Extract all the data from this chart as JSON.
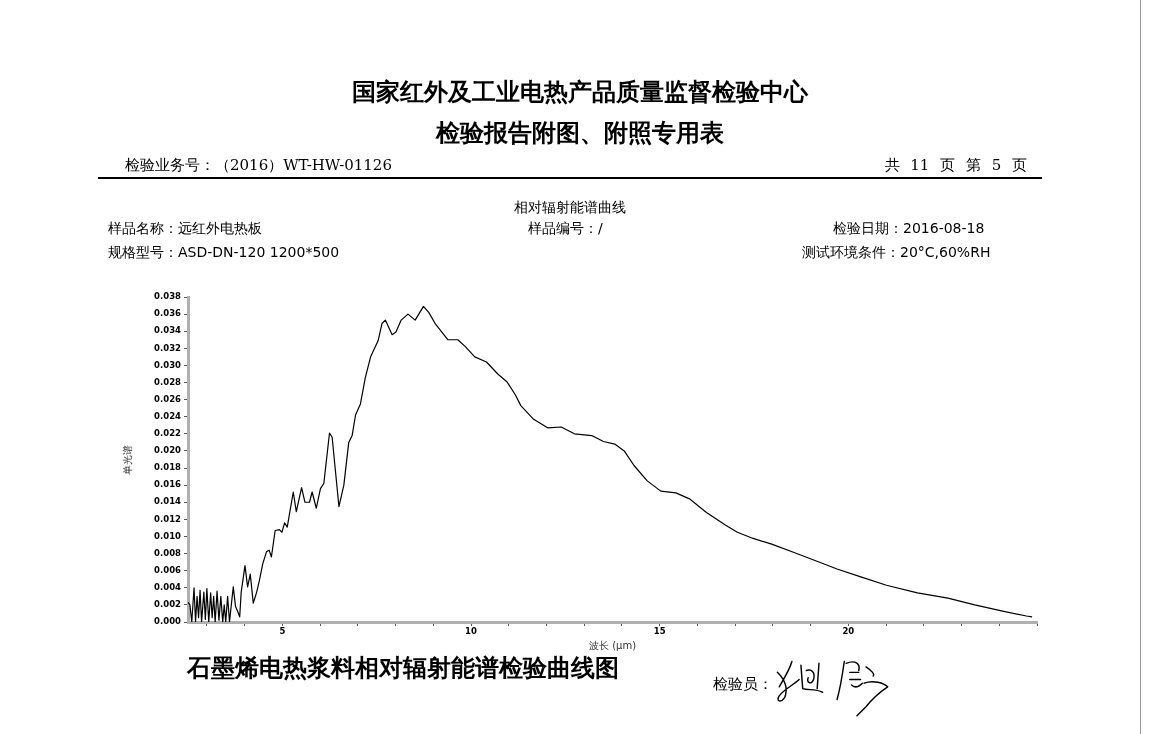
{
  "chart_data": {
    "type": "line",
    "title": "国家红外及工业电热产品质量监督检验中心",
    "subtitle": "检验报告附图、附照专用表",
    "annotations": [
      "检验业务号：（2016）WT-HW-01126",
      "共 11 页 第 5 页",
      "相对辐射能谱曲线",
      "样品名称：远红外电热板",
      "样品编号：/",
      "检验日期：2016-08-18",
      "规格型号：ASD-DN-120 1200*500",
      "测试环境条件：20°C,60%RH",
      "石墨烯电热浆料相对辐射能谱检验曲线图",
      "检验员："
    ],
    "xlabel": "波长 (μm)",
    "ylabel": "单光谱",
    "color": "#000000",
    "grid": false,
    "xlim": [
      2.5,
      25
    ],
    "ylim": [
      0,
      0.038
    ],
    "xticks": [
      {
        "value": 3,
        "label": null
      },
      {
        "value": 4,
        "label": null
      },
      5,
      {
        "value": 6,
        "label": null
      },
      {
        "value": 7,
        "label": null
      },
      {
        "value": 8,
        "label": null
      },
      {
        "value": 9,
        "label": null
      },
      10,
      {
        "value": 11,
        "label": null
      },
      {
        "value": 12,
        "label": null
      },
      {
        "value": 13,
        "label": null
      },
      {
        "value": 14,
        "label": null
      },
      15,
      {
        "value": 16,
        "label": null
      },
      {
        "value": 17,
        "label": null
      },
      {
        "value": 18,
        "label": null
      },
      {
        "value": 19,
        "label": null
      },
      20,
      {
        "value": 21,
        "label": null
      },
      {
        "value": 22,
        "label": null
      },
      {
        "value": 23,
        "label": null
      },
      {
        "value": 24,
        "label": null
      },
      {
        "value": 25,
        "label": null
      }
    ],
    "yticks": [
      {
        "value": 0,
        "label": "0.000"
      },
      0.002,
      0.004,
      0.006,
      0.008,
      {
        "value": 0.01,
        "label": "0.010"
      },
      0.012,
      0.014,
      0.016,
      0.018,
      {
        "value": 0.02,
        "label": "0.020"
      },
      0.022,
      0.024,
      0.026,
      0.028,
      {
        "value": 0.03,
        "label": "0.030"
      },
      0.032,
      0.034,
      0.036,
      0.038
    ],
    "x": [
      2.5,
      2.55,
      2.6,
      2.66,
      2.7,
      2.74,
      2.78,
      2.82,
      2.86,
      2.92,
      2.96,
      3.0,
      3.05,
      3.1,
      3.14,
      3.18,
      3.22,
      3.27,
      3.32,
      3.37,
      3.42,
      3.46,
      3.5,
      3.55,
      3.6,
      3.66,
      3.7,
      3.76,
      3.82,
      3.87,
      3.91,
      4.01,
      4.08,
      4.15,
      4.23,
      4.32,
      4.39,
      4.48,
      4.58,
      4.65,
      4.71,
      4.81,
      4.92,
      4.99,
      5.06,
      5.13,
      5.29,
      5.37,
      5.51,
      5.6,
      5.72,
      5.79,
      5.9,
      6.01,
      6.1,
      6.25,
      6.32,
      6.5,
      6.63,
      6.76,
      6.85,
      6.94,
      7.07,
      7.2,
      7.34,
      7.54,
      7.64,
      7.73,
      7.91,
      8.01,
      8.15,
      8.33,
      8.52,
      8.74,
      8.88,
      9.05,
      9.39,
      9.65,
      9.85,
      10.1,
      10.41,
      10.71,
      10.95,
      11.17,
      11.32,
      11.66,
      12.03,
      12.39,
      12.74,
      13.2,
      13.51,
      13.81,
      14.06,
      14.32,
      14.67,
      15.03,
      15.43,
      15.79,
      16.24,
      16.75,
      17.06,
      17.46,
      17.97,
      18.58,
      19.29,
      19.7,
      20.31,
      21.01,
      21.83,
      22.64,
      23.35,
      24.06,
      24.72,
      24.87
    ],
    "values": [
      0.0023,
      0.002,
      0,
      0.004,
      0,
      0.003,
      0.0005,
      0.0037,
      0,
      0.0035,
      0.0003,
      0.0039,
      0,
      0.0034,
      0.0005,
      0.003,
      0,
      0.0036,
      0.0002,
      0.003,
      0,
      0.002,
      0,
      0.003,
      0,
      0.0025,
      0.0041,
      0.0018,
      0.0012,
      0.0006,
      0.0035,
      0.0066,
      0.0041,
      0.0056,
      0.0022,
      0.0035,
      0.0048,
      0.0068,
      0.0082,
      0.0084,
      0.0076,
      0.0107,
      0.0108,
      0.0105,
      0.0116,
      0.0111,
      0.0152,
      0.0129,
      0.0157,
      0.014,
      0.014,
      0.0152,
      0.0133,
      0.0156,
      0.0162,
      0.0221,
      0.0216,
      0.0135,
      0.016,
      0.021,
      0.0218,
      0.0242,
      0.0255,
      0.0286,
      0.031,
      0.0329,
      0.0349,
      0.0353,
      0.0336,
      0.0339,
      0.0353,
      0.036,
      0.0353,
      0.0369,
      0.0362,
      0.0349,
      0.033,
      0.033,
      0.0322,
      0.031,
      0.0304,
      0.029,
      0.0281,
      0.0266,
      0.0253,
      0.0237,
      0.0227,
      0.0228,
      0.022,
      0.0218,
      0.0211,
      0.0208,
      0.02,
      0.0183,
      0.0165,
      0.0153,
      0.0151,
      0.0144,
      0.0128,
      0.0113,
      0.0105,
      0.0098,
      0.0091,
      0.0081,
      0.0069,
      0.0062,
      0.0053,
      0.0043,
      0.0034,
      0.0028,
      0.002,
      0.0013,
      0.0007,
      0.0006
    ]
  }
}
